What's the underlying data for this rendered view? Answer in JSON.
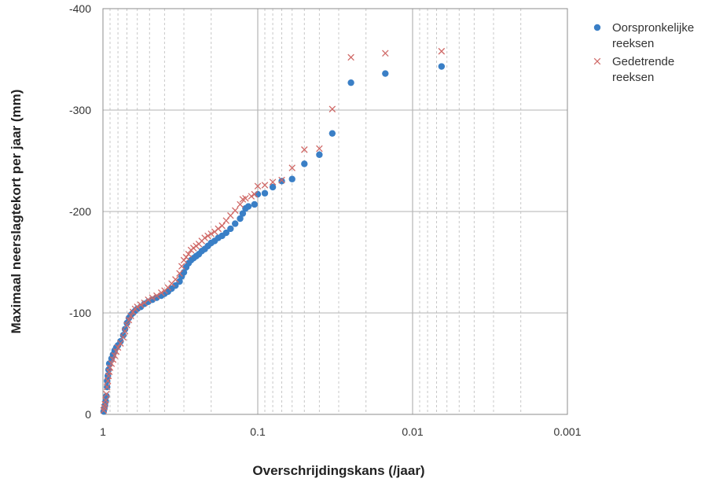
{
  "chart_data": {
    "type": "scatter",
    "xlabel": "Overschrijdingskans (/jaar)",
    "ylabel": "Maximaal neerslagtekort  per jaar (mm)",
    "x_scale": "log-reversed",
    "xlim": [
      1,
      0.001
    ],
    "ylim": [
      0,
      -400
    ],
    "x_ticks": [
      {
        "value": 1,
        "label": "1"
      },
      {
        "value": 0.1,
        "label": "0.1"
      },
      {
        "value": 0.01,
        "label": "0.01"
      },
      {
        "value": 0.001,
        "label": "0.001"
      }
    ],
    "y_ticks": [
      {
        "value": 0,
        "label": "0"
      },
      {
        "value": -100,
        "label": "-100"
      },
      {
        "value": -200,
        "label": "-200"
      },
      {
        "value": -300,
        "label": "-300"
      },
      {
        "value": -400,
        "label": "-400"
      }
    ],
    "grid": true,
    "legend_position": "right",
    "series": [
      {
        "name": "Oorspronkelijke reeksen",
        "marker": "circle",
        "color": "#3a7fc6",
        "points": [
          [
            0.99,
            -3
          ],
          [
            0.98,
            -6
          ],
          [
            0.97,
            -9
          ],
          [
            0.96,
            -13
          ],
          [
            0.95,
            -18
          ],
          [
            0.94,
            -27
          ],
          [
            0.94,
            -33
          ],
          [
            0.93,
            -38
          ],
          [
            0.92,
            -44
          ],
          [
            0.91,
            -50
          ],
          [
            0.88,
            -55
          ],
          [
            0.86,
            -59
          ],
          [
            0.84,
            -63
          ],
          [
            0.82,
            -66
          ],
          [
            0.8,
            -68
          ],
          [
            0.77,
            -72
          ],
          [
            0.74,
            -78
          ],
          [
            0.72,
            -84
          ],
          [
            0.7,
            -90
          ],
          [
            0.68,
            -95
          ],
          [
            0.66,
            -98
          ],
          [
            0.64,
            -100
          ],
          [
            0.62,
            -102
          ],
          [
            0.6,
            -104
          ],
          [
            0.57,
            -106
          ],
          [
            0.54,
            -109
          ],
          [
            0.51,
            -111
          ],
          [
            0.48,
            -113
          ],
          [
            0.45,
            -115
          ],
          [
            0.42,
            -117
          ],
          [
            0.4,
            -119
          ],
          [
            0.38,
            -121
          ],
          [
            0.36,
            -124
          ],
          [
            0.34,
            -127
          ],
          [
            0.32,
            -131
          ],
          [
            0.31,
            -136
          ],
          [
            0.3,
            -140
          ],
          [
            0.29,
            -145
          ],
          [
            0.28,
            -149
          ],
          [
            0.27,
            -152
          ],
          [
            0.26,
            -154
          ],
          [
            0.25,
            -156
          ],
          [
            0.24,
            -158
          ],
          [
            0.23,
            -161
          ],
          [
            0.22,
            -163
          ],
          [
            0.21,
            -166
          ],
          [
            0.2,
            -169
          ],
          [
            0.19,
            -171
          ],
          [
            0.18,
            -174
          ],
          [
            0.17,
            -176
          ],
          [
            0.16,
            -179
          ],
          [
            0.15,
            -183
          ],
          [
            0.14,
            -188
          ],
          [
            0.13,
            -193
          ],
          [
            0.125,
            -198
          ],
          [
            0.12,
            -203
          ],
          [
            0.115,
            -205
          ],
          [
            0.105,
            -207
          ],
          [
            0.1,
            -217
          ],
          [
            0.09,
            -218
          ],
          [
            0.08,
            -224
          ],
          [
            0.07,
            -230
          ],
          [
            0.06,
            -232
          ],
          [
            0.05,
            -247
          ],
          [
            0.04,
            -256
          ],
          [
            0.033,
            -277
          ],
          [
            0.025,
            -327
          ],
          [
            0.015,
            -336
          ],
          [
            0.0065,
            -343
          ]
        ]
      },
      {
        "name": "Gedetrende reeksen",
        "marker": "x",
        "color": "#d06a68",
        "points": [
          [
            0.99,
            -4
          ],
          [
            0.98,
            -7
          ],
          [
            0.97,
            -10
          ],
          [
            0.96,
            -14
          ],
          [
            0.95,
            -20
          ],
          [
            0.94,
            -27
          ],
          [
            0.93,
            -33
          ],
          [
            0.92,
            -38
          ],
          [
            0.91,
            -42
          ],
          [
            0.9,
            -46
          ],
          [
            0.88,
            -50
          ],
          [
            0.86,
            -54
          ],
          [
            0.84,
            -58
          ],
          [
            0.82,
            -62
          ],
          [
            0.8,
            -66
          ],
          [
            0.77,
            -70
          ],
          [
            0.74,
            -76
          ],
          [
            0.72,
            -82
          ],
          [
            0.7,
            -88
          ],
          [
            0.68,
            -93
          ],
          [
            0.66,
            -97
          ],
          [
            0.64,
            -101
          ],
          [
            0.62,
            -104
          ],
          [
            0.6,
            -106
          ],
          [
            0.57,
            -108
          ],
          [
            0.54,
            -110
          ],
          [
            0.51,
            -113
          ],
          [
            0.48,
            -115
          ],
          [
            0.45,
            -117
          ],
          [
            0.42,
            -120
          ],
          [
            0.4,
            -122
          ],
          [
            0.38,
            -125
          ],
          [
            0.36,
            -129
          ],
          [
            0.34,
            -133
          ],
          [
            0.32,
            -139
          ],
          [
            0.31,
            -146
          ],
          [
            0.3,
            -152
          ],
          [
            0.29,
            -155
          ],
          [
            0.28,
            -158
          ],
          [
            0.27,
            -162
          ],
          [
            0.26,
            -164
          ],
          [
            0.25,
            -166
          ],
          [
            0.24,
            -168
          ],
          [
            0.23,
            -171
          ],
          [
            0.22,
            -174
          ],
          [
            0.21,
            -176
          ],
          [
            0.2,
            -178
          ],
          [
            0.19,
            -180
          ],
          [
            0.18,
            -183
          ],
          [
            0.17,
            -186
          ],
          [
            0.16,
            -191
          ],
          [
            0.15,
            -196
          ],
          [
            0.14,
            -201
          ],
          [
            0.13,
            -207
          ],
          [
            0.125,
            -212
          ],
          [
            0.12,
            -213
          ],
          [
            0.11,
            -215
          ],
          [
            0.105,
            -217
          ],
          [
            0.1,
            -225
          ],
          [
            0.09,
            -226
          ],
          [
            0.08,
            -229
          ],
          [
            0.07,
            -231
          ],
          [
            0.06,
            -243
          ],
          [
            0.05,
            -261
          ],
          [
            0.04,
            -262
          ],
          [
            0.033,
            -301
          ],
          [
            0.025,
            -352
          ],
          [
            0.015,
            -356
          ],
          [
            0.0065,
            -358
          ]
        ]
      }
    ]
  }
}
